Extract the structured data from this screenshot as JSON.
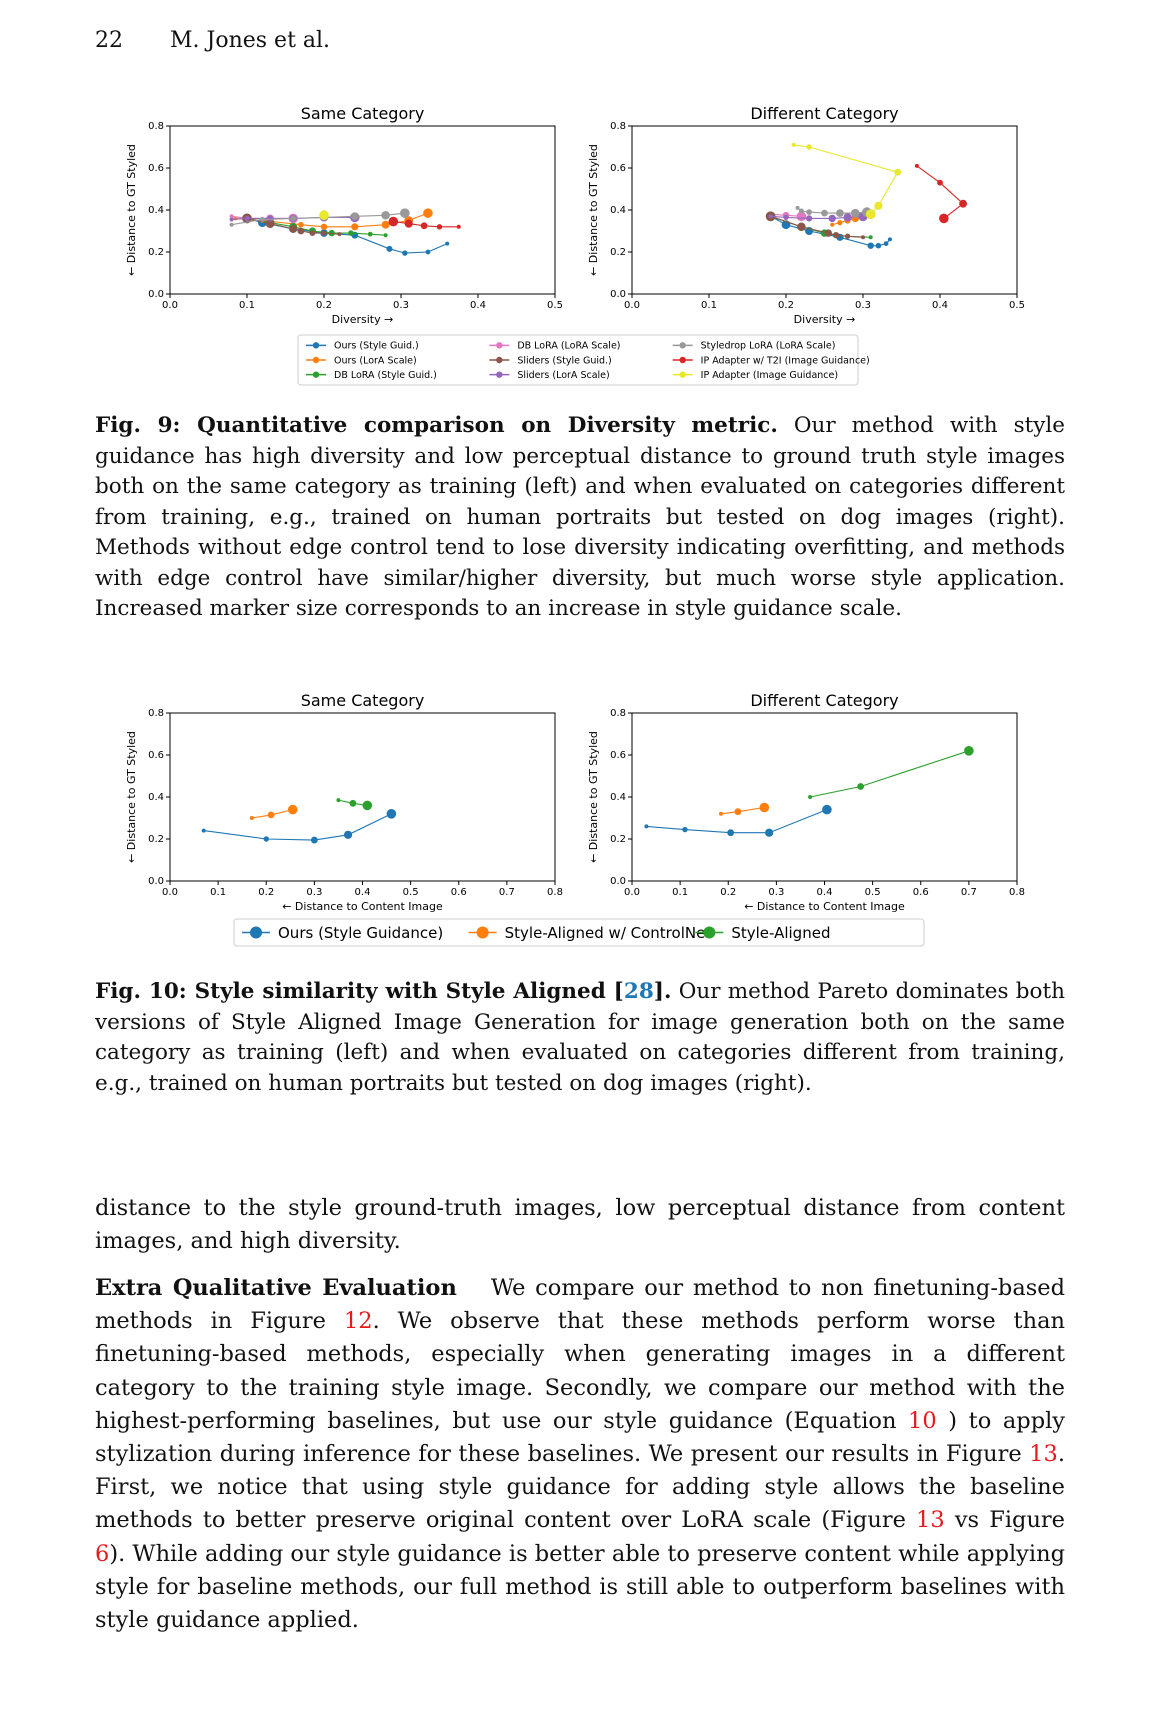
{
  "header": {
    "page_number": "22",
    "authors": "M. Jones et al."
  },
  "fig9": {
    "caption_label": "Fig. 9: Quantitative comparison on Diversity metric.",
    "caption_text": " Our method with style guidance has high diversity and low perceptual distance to ground truth style images both on the same category as training (left) and when evaluated on categories different from training, e.g., trained on human portraits but tested on dog images (right). Methods without edge control tend to lose diversity indicating overfitting, and methods with edge control have similar/higher diversity, but much worse style application. Increased marker size corresponds to an increase in style guidance scale."
  },
  "fig10": {
    "caption_label": "Fig. 10: Style similarity with Style Aligned [",
    "caption_ref": "28",
    "caption_label_end": "].",
    "caption_text": " Our method Pareto dominates both versions of Style Aligned Image Generation for image generation both on the same category as training (left) and when evaluated on categories different from training, e.g., trained on human portraits but tested on dog images (right)."
  },
  "body": {
    "p1": "distance to the style ground-truth images, low perceptual distance from content images, and high diversity.",
    "p2_heading": "Extra Qualitative Evaluation",
    "p2_a": "We compare our method to non finetuning-based methods in Figure ",
    "p2_ref1": "12",
    "p2_b": ". We observe that these methods perform worse than finetuning-based methods, especially when generating images in a different category to the training style image. Secondly, we compare our method with the highest-performing baselines, but use our style guidance (Equation ",
    "p2_ref2": "10",
    "p2_c": " ) to apply stylization during inference for these baselines. We present our results in Figure ",
    "p2_ref3": "13",
    "p2_d": ". First, we notice that using style guidance for adding style allows the baseline methods to better preserve original content over LoRA scale (Figure ",
    "p2_ref4": "13",
    "p2_e": " vs Figure ",
    "p2_ref5": "6",
    "p2_f": "). While adding our style guidance is better able to preserve content while applying style for baseline methods, our full method is still able to outperform baselines with style guidance applied."
  },
  "chart_data": [
    {
      "type": "line",
      "title": "Same Category",
      "xlabel": "Diversity →",
      "ylabel": "← Distance to GT Styled",
      "xlim": [
        0.0,
        0.5
      ],
      "ylim": [
        0.0,
        0.8
      ],
      "xticks": [
        "0.0",
        "0.1",
        "0.2",
        "0.3",
        "0.4",
        "0.5"
      ],
      "yticks": [
        "0.0",
        "0.2",
        "0.4",
        "0.6",
        "0.8"
      ],
      "series": [
        {
          "name": "Ours (Style Guid.)",
          "color": "#1f77b4",
          "x": [
            0.36,
            0.335,
            0.305,
            0.285,
            0.24,
            0.2,
            0.16,
            0.12,
            0.1
          ],
          "y": [
            0.24,
            0.2,
            0.195,
            0.215,
            0.28,
            0.29,
            0.31,
            0.34,
            0.36
          ]
        },
        {
          "name": "Ours (LorA Scale)",
          "color": "#ff7f0e",
          "x": [
            0.085,
            0.12,
            0.17,
            0.2,
            0.24,
            0.28,
            0.31,
            0.335
          ],
          "y": [
            0.36,
            0.35,
            0.33,
            0.32,
            0.32,
            0.33,
            0.35,
            0.385
          ]
        },
        {
          "name": "DB LoRA (Style Guid.)",
          "color": "#2ca02c",
          "x": [
            0.28,
            0.26,
            0.235,
            0.21,
            0.185,
            0.16,
            0.13,
            0.1
          ],
          "y": [
            0.28,
            0.285,
            0.29,
            0.29,
            0.3,
            0.32,
            0.34,
            0.36
          ]
        },
        {
          "name": "DB LoRA (LoRA Scale)",
          "color": "#e377c2",
          "x": [
            0.08,
            0.1,
            0.13,
            0.16
          ],
          "y": [
            0.37,
            0.36,
            0.36,
            0.36
          ]
        },
        {
          "name": "Sliders (Style Guid.)",
          "color": "#8c564b",
          "x": [
            0.22,
            0.2,
            0.185,
            0.17,
            0.16,
            0.13,
            0.1
          ],
          "y": [
            0.285,
            0.29,
            0.29,
            0.3,
            0.31,
            0.335,
            0.36
          ]
        },
        {
          "name": "Sliders (LorA Scale)",
          "color": "#9467bd",
          "x": [
            0.08,
            0.1,
            0.13,
            0.16,
            0.2,
            0.24
          ],
          "y": [
            0.355,
            0.36,
            0.36,
            0.36,
            0.365,
            0.365
          ]
        },
        {
          "name": "Styledrop LoRA (LoRA Scale)",
          "color": "#999999",
          "x": [
            0.08,
            0.12,
            0.16,
            0.2,
            0.24,
            0.28,
            0.305
          ],
          "y": [
            0.33,
            0.355,
            0.36,
            0.365,
            0.37,
            0.375,
            0.385
          ]
        },
        {
          "name": "IP Adapter w/ T2I (Image Guidance)",
          "color": "#d62728",
          "x": [
            0.375,
            0.35,
            0.33,
            0.31,
            0.29
          ],
          "y": [
            0.32,
            0.32,
            0.325,
            0.335,
            0.345
          ]
        },
        {
          "name": "IP Adapter (Image Guidance)",
          "color": "#e8e82c",
          "x": [
            0.2,
            0.2
          ],
          "y": [
            0.39,
            0.375
          ]
        }
      ]
    },
    {
      "type": "line",
      "title": "Different Category",
      "xlabel": "Diversity →",
      "ylabel": "← Distance to GT Styled",
      "xlim": [
        0.0,
        0.5
      ],
      "ylim": [
        0.0,
        0.8
      ],
      "xticks": [
        "0.0",
        "0.1",
        "0.2",
        "0.3",
        "0.4",
        "0.5"
      ],
      "yticks": [
        "0.0",
        "0.2",
        "0.4",
        "0.6",
        "0.8"
      ],
      "series": [
        {
          "name": "Ours (Style Guid.)",
          "color": "#1f77b4",
          "x": [
            0.335,
            0.33,
            0.32,
            0.31,
            0.27,
            0.23,
            0.2,
            0.18
          ],
          "y": [
            0.26,
            0.24,
            0.23,
            0.23,
            0.27,
            0.3,
            0.33,
            0.37
          ]
        },
        {
          "name": "Ours (LorA Scale)",
          "color": "#ff7f0e",
          "x": [
            0.26,
            0.27,
            0.28,
            0.29,
            0.3,
            0.31
          ],
          "y": [
            0.33,
            0.34,
            0.35,
            0.36,
            0.37,
            0.38
          ]
        },
        {
          "name": "DB LoRA (Style Guid.)",
          "color": "#2ca02c",
          "x": [
            0.31,
            0.28,
            0.265,
            0.25,
            0.22,
            0.18
          ],
          "y": [
            0.27,
            0.275,
            0.28,
            0.29,
            0.32,
            0.37
          ]
        },
        {
          "name": "DB LoRA (LoRA Scale)",
          "color": "#e377c2",
          "x": [
            0.18,
            0.2,
            0.22
          ],
          "y": [
            0.38,
            0.375,
            0.37
          ]
        },
        {
          "name": "Sliders (Style Guid.)",
          "color": "#8c564b",
          "x": [
            0.3,
            0.28,
            0.265,
            0.255,
            0.22,
            0.18
          ],
          "y": [
            0.27,
            0.275,
            0.28,
            0.29,
            0.32,
            0.37
          ]
        },
        {
          "name": "Sliders (LorA Scale)",
          "color": "#9467bd",
          "x": [
            0.18,
            0.2,
            0.23,
            0.26,
            0.28,
            0.3
          ],
          "y": [
            0.37,
            0.365,
            0.36,
            0.36,
            0.365,
            0.37
          ]
        },
        {
          "name": "Styledrop LoRA (LoRA Scale)",
          "color": "#999999",
          "x": [
            0.215,
            0.22,
            0.23,
            0.25,
            0.27,
            0.29,
            0.305
          ],
          "y": [
            0.41,
            0.395,
            0.39,
            0.385,
            0.385,
            0.385,
            0.39
          ]
        },
        {
          "name": "IP Adapter w/ T2I (Image Guidance)",
          "color": "#d62728",
          "x": [
            0.37,
            0.4,
            0.43,
            0.405
          ],
          "y": [
            0.61,
            0.53,
            0.43,
            0.36
          ]
        },
        {
          "name": "IP Adapter (Image Guidance)",
          "color": "#e8e82c",
          "x": [
            0.21,
            0.23,
            0.345,
            0.32,
            0.31
          ],
          "y": [
            0.71,
            0.7,
            0.58,
            0.42,
            0.38
          ]
        }
      ],
      "legend_location": "below"
    },
    {
      "type": "line",
      "title": "Same Category",
      "xlabel": "← Distance to Content Image",
      "ylabel": "← Distance to GT Styled",
      "xlim": [
        0.0,
        0.8
      ],
      "ylim": [
        0.0,
        0.8
      ],
      "xticks": [
        "0.0",
        "0.1",
        "0.2",
        "0.3",
        "0.4",
        "0.5",
        "0.6",
        "0.7",
        "0.8"
      ],
      "yticks": [
        "0.0",
        "0.2",
        "0.4",
        "0.6",
        "0.8"
      ],
      "series": [
        {
          "name": "Ours (Style Guidance)",
          "color": "#1f77b4",
          "x": [
            0.07,
            0.2,
            0.3,
            0.37,
            0.46
          ],
          "y": [
            0.24,
            0.2,
            0.195,
            0.22,
            0.32
          ]
        },
        {
          "name": "Style-Aligned w/ ControlNet",
          "color": "#ff7f0e",
          "x": [
            0.17,
            0.21,
            0.255
          ],
          "y": [
            0.3,
            0.315,
            0.34
          ]
        },
        {
          "name": "Style-Aligned",
          "color": "#2ca02c",
          "x": [
            0.35,
            0.38,
            0.41
          ],
          "y": [
            0.385,
            0.37,
            0.36
          ]
        }
      ]
    },
    {
      "type": "line",
      "title": "Different Category",
      "xlabel": "← Distance to Content Image",
      "ylabel": "← Distance to GT Styled",
      "xlim": [
        0.0,
        0.8
      ],
      "ylim": [
        0.0,
        0.8
      ],
      "xticks": [
        "0.0",
        "0.1",
        "0.2",
        "0.3",
        "0.4",
        "0.5",
        "0.6",
        "0.7",
        "0.8"
      ],
      "yticks": [
        "0.0",
        "0.2",
        "0.4",
        "0.6",
        "0.8"
      ],
      "series": [
        {
          "name": "Ours (Style Guidance)",
          "color": "#1f77b4",
          "x": [
            0.03,
            0.11,
            0.205,
            0.285,
            0.405
          ],
          "y": [
            0.26,
            0.245,
            0.23,
            0.23,
            0.34
          ]
        },
        {
          "name": "Style-Aligned w/ ControlNet",
          "color": "#ff7f0e",
          "x": [
            0.185,
            0.22,
            0.275
          ],
          "y": [
            0.32,
            0.33,
            0.35
          ]
        },
        {
          "name": "Style-Aligned",
          "color": "#2ca02c",
          "x": [
            0.37,
            0.475,
            0.7
          ],
          "y": [
            0.4,
            0.45,
            0.62
          ]
        }
      ],
      "legend_location": "below"
    }
  ]
}
